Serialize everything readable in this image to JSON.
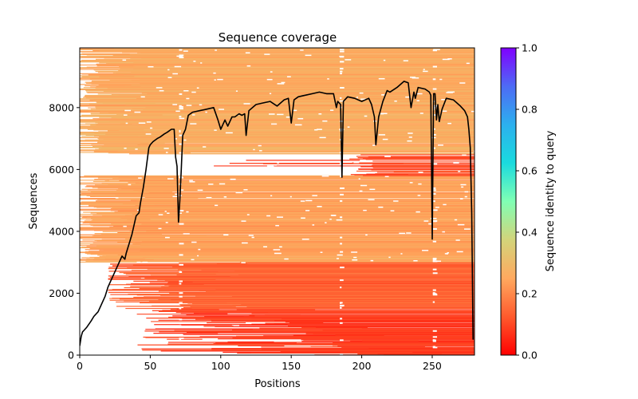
{
  "chart_data": {
    "type": "heatmap",
    "title": "Sequence coverage",
    "xlabel": "Positions",
    "ylabel": "Sequences",
    "xlim": [
      0,
      280
    ],
    "ylim": [
      0,
      9930
    ],
    "xticks": [
      0,
      50,
      100,
      150,
      200,
      250
    ],
    "yticks": [
      0,
      2000,
      4000,
      6000,
      8000
    ],
    "grid": false,
    "colorbar": {
      "label": "Sequence identity to query",
      "colormap": "rainbow_r",
      "range": [
        0.0,
        1.0
      ],
      "ticks": [
        0.0,
        0.2,
        0.4,
        0.6,
        0.8,
        1.0
      ],
      "tick_labels": [
        "0.0",
        "0.2",
        "0.4",
        "0.6",
        "0.8",
        "1.0"
      ],
      "stops": [
        "#ff0000",
        "#ff5a2d",
        "#ffa95f",
        "#d3d47a",
        "#80ffb4",
        "#1adbde",
        "#2cb0ee",
        "#4d6bf5",
        "#8000ff"
      ]
    },
    "alignment_summary": {
      "description": "Each horizontal line is one aligned sequence, sorted by identity (low identity at bottom, high at top), colored by sequence identity to query",
      "bands": [
        {
          "seq_range": [
            0,
            1500
          ],
          "identity": 0.08,
          "start_range": [
            40,
            240
          ],
          "end": 280
        },
        {
          "seq_range": [
            1500,
            3000
          ],
          "identity": 0.14,
          "start_range": [
            20,
            120
          ],
          "end": 280
        },
        {
          "seq_range": [
            3000,
            5800
          ],
          "identity": 0.24,
          "start_range": [
            0,
            80
          ],
          "end": 280
        },
        {
          "seq_range": [
            5800,
            6500
          ],
          "identity": 0.1,
          "start_range": [
            50,
            230
          ],
          "end": 280,
          "gap": [
            0,
            210
          ]
        },
        {
          "seq_range": [
            6500,
            9930
          ],
          "identity": 0.26,
          "start_range": [
            0,
            80
          ],
          "end": 280
        }
      ]
    },
    "series": [
      {
        "name": "Coverage",
        "color": "#000000",
        "x": [
          0,
          1,
          2,
          3,
          5,
          8,
          10,
          13,
          15,
          18,
          20,
          22,
          25,
          27,
          30,
          32,
          33,
          35,
          37,
          38,
          40,
          42,
          43,
          45,
          47,
          49,
          50,
          52,
          55,
          57,
          60,
          62,
          65,
          67,
          68,
          69,
          70,
          71,
          72,
          73,
          75,
          77,
          80,
          85,
          90,
          95,
          98,
          100,
          103,
          105,
          108,
          110,
          113,
          115,
          117,
          118,
          120,
          125,
          130,
          135,
          140,
          145,
          148,
          150,
          152,
          155,
          160,
          165,
          170,
          175,
          180,
          182,
          183,
          185,
          186,
          187,
          190,
          195,
          200,
          205,
          207,
          209,
          210,
          212,
          215,
          218,
          220,
          225,
          230,
          233,
          235,
          237,
          238,
          240,
          245,
          248,
          249,
          250,
          251,
          252,
          253,
          254,
          255,
          257,
          260,
          265,
          270,
          273,
          275,
          276,
          277,
          278,
          279
        ],
        "y": [
          300,
          600,
          750,
          800,
          900,
          1100,
          1250,
          1400,
          1600,
          1900,
          2200,
          2400,
          2700,
          2900,
          3200,
          3100,
          3300,
          3600,
          3900,
          4100,
          4500,
          4600,
          4900,
          5400,
          6000,
          6700,
          6800,
          6900,
          7000,
          7050,
          7150,
          7200,
          7300,
          7300,
          6400,
          6100,
          4300,
          5000,
          6000,
          7100,
          7300,
          7750,
          7850,
          7900,
          7950,
          8000,
          7600,
          7300,
          7600,
          7400,
          7700,
          7700,
          7800,
          7750,
          7800,
          7100,
          7900,
          8100,
          8150,
          8200,
          8050,
          8250,
          8300,
          7500,
          8250,
          8350,
          8400,
          8450,
          8500,
          8450,
          8450,
          8000,
          8200,
          8100,
          5750,
          8200,
          8350,
          8300,
          8200,
          8300,
          8100,
          7700,
          6800,
          7700,
          8200,
          8550,
          8500,
          8650,
          8850,
          8800,
          8000,
          8500,
          8300,
          8650,
          8600,
          8500,
          8400,
          3750,
          8450,
          8450,
          7600,
          8100,
          7550,
          7950,
          8300,
          8250,
          8050,
          7900,
          7700,
          7300,
          6700,
          4600,
          500
        ]
      }
    ]
  }
}
